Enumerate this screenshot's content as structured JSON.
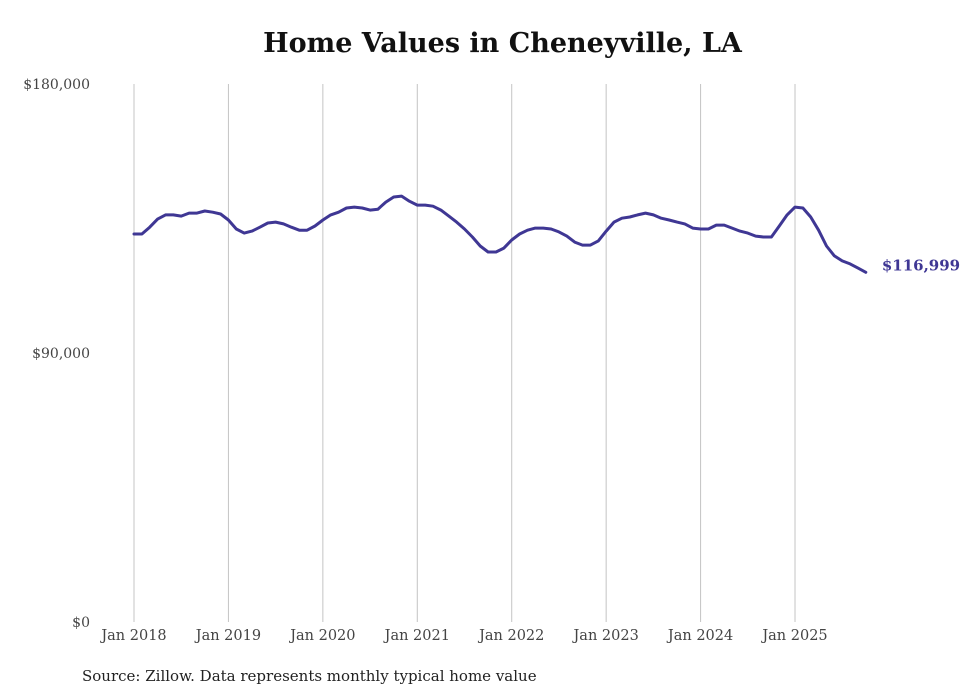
{
  "chart_data": {
    "type": "line",
    "title": "Home Values in Cheneyville, LA",
    "xlabel": "",
    "ylabel": "",
    "ylim": [
      0,
      180000
    ],
    "yticks": [
      0,
      90000,
      180000
    ],
    "ytick_labels": [
      "$0",
      "$90,000",
      "$180,000"
    ],
    "xticks": [
      "Jan 2018",
      "Jan 2019",
      "Jan 2020",
      "Jan 2021",
      "Jan 2022",
      "Jan 2023",
      "Jan 2024",
      "Jan 2025"
    ],
    "grid": "vertical",
    "start": "2018-01",
    "frequency": "monthly",
    "series": [
      {
        "name": "Typical home value",
        "color": "#3f3794",
        "values": [
          129800,
          129800,
          132100,
          134800,
          136200,
          136200,
          135800,
          136800,
          136800,
          137500,
          137100,
          136500,
          134500,
          131500,
          130100,
          130800,
          132100,
          133500,
          133800,
          133200,
          132100,
          131100,
          131100,
          132500,
          134500,
          136200,
          137100,
          138500,
          138800,
          138500,
          137800,
          138100,
          140500,
          142200,
          142500,
          140800,
          139500,
          139500,
          139100,
          137800,
          135800,
          133800,
          131500,
          128800,
          125800,
          123800,
          123800,
          125100,
          127800,
          129800,
          131100,
          131800,
          131800,
          131500,
          130500,
          129100,
          127100,
          126100,
          126100,
          127500,
          130800,
          133800,
          135100,
          135500,
          136200,
          136800,
          136200,
          135100,
          134500,
          133800,
          133200,
          131800,
          131500,
          131500,
          132800,
          132800,
          131800,
          130800,
          130100,
          129100,
          128800,
          128800,
          132500,
          136200,
          138800,
          138500,
          135500,
          131100,
          125800,
          122500,
          120800,
          119800,
          118400,
          116999
        ]
      }
    ],
    "end_label": "$116,999"
  },
  "source": "Source: Zillow. Data represents monthly typical home value"
}
